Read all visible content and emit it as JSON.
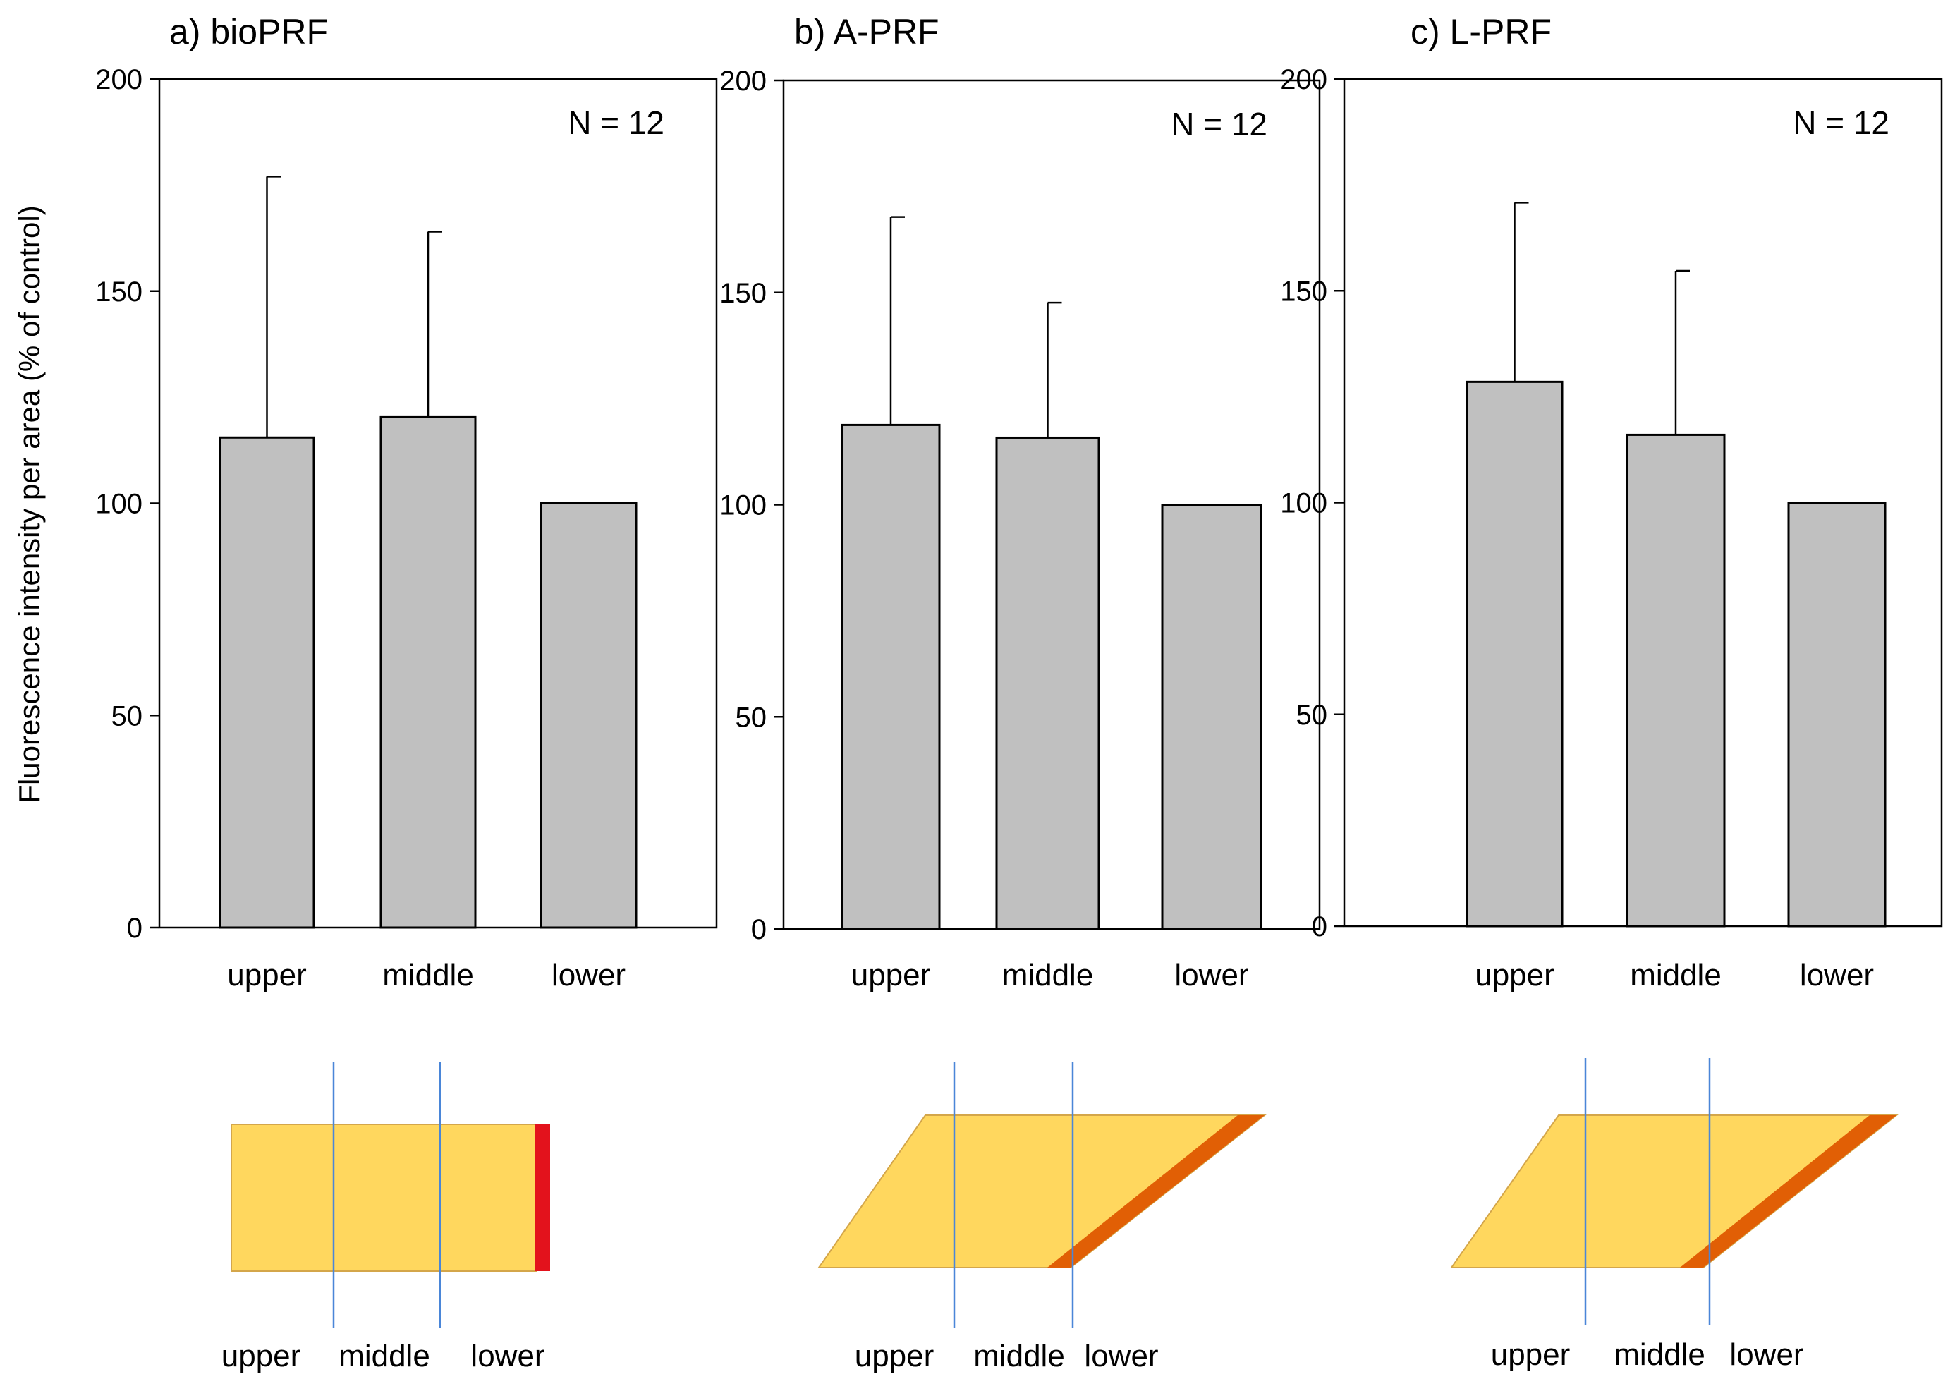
{
  "ylabel": "Fluorescence intensity per area (% of control)",
  "colors": {
    "bar_fill": "#c0c0c0",
    "bar_stroke": "#000000",
    "clot_fill": "#ffd75e",
    "clot_stroke": "#d4a64a",
    "red_layer": "#e3121c",
    "orange_layer": "#e15f05",
    "divider_line": "#4a86d8"
  },
  "chart_data": [
    {
      "type": "bar",
      "title": "a) bioPRF",
      "categories": [
        "upper",
        "middle",
        "lower"
      ],
      "values": [
        115.5,
        120.3,
        100
      ],
      "error_upper": [
        177,
        164,
        100
      ],
      "ylim": [
        0,
        200
      ],
      "yticks": [
        0,
        50,
        100,
        150,
        200
      ],
      "annotation": "N = 12",
      "grid": false
    },
    {
      "type": "bar",
      "title": "b) A-PRF",
      "categories": [
        "upper",
        "middle",
        "lower"
      ],
      "values": [
        118.8,
        115.8,
        100
      ],
      "error_upper": [
        167.8,
        147.6,
        100
      ],
      "ylim": [
        0,
        200
      ],
      "yticks": [
        0,
        50,
        100,
        150,
        200
      ],
      "annotation": "N = 12",
      "grid": false
    },
    {
      "type": "bar",
      "title": "c) L-PRF",
      "categories": [
        "upper",
        "middle",
        "lower"
      ],
      "values": [
        128.5,
        116,
        100
      ],
      "error_upper": [
        170.8,
        154.7,
        100
      ],
      "ylim": [
        0,
        200
      ],
      "yticks": [
        0,
        50,
        100,
        150,
        200
      ],
      "annotation": "N = 12",
      "grid": false
    }
  ],
  "diagrams": [
    {
      "shape": "rectangle",
      "layer": "red_layer",
      "labels": [
        "upper",
        "middle",
        "lower"
      ]
    },
    {
      "shape": "parallelogram",
      "layer": "orange_layer",
      "labels": [
        "upper",
        "middle",
        "lower"
      ]
    },
    {
      "shape": "parallelogram",
      "layer": "orange_layer",
      "labels": [
        "upper",
        "middle",
        "lower"
      ]
    }
  ]
}
